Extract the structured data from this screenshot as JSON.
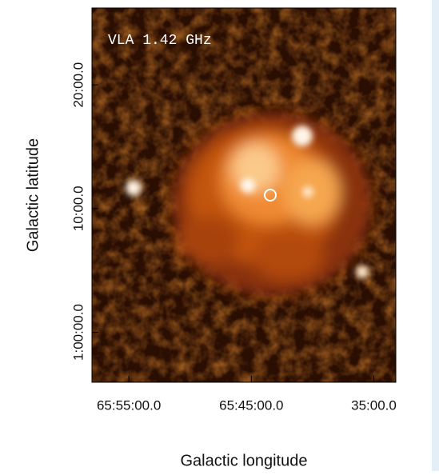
{
  "chart_data": {
    "type": "image",
    "annotation": "VLA 1.42 GHz",
    "xlabel": "Galactic longitude",
    "ylabel": "Galactic latitude",
    "xlim": [
      65.9669,
      65.5534
    ],
    "ylim": [
      0.9327,
      1.4369
    ],
    "xticks": [
      {
        "value": 65.9167,
        "label": "65:55:00.0"
      },
      {
        "value": 65.75,
        "label": "65:45:00.0"
      },
      {
        "value": 65.5833,
        "label": "35:00.0"
      }
    ],
    "yticks": [
      {
        "value": 1.0,
        "label": "1:00:00.0"
      },
      {
        "value": 1.1667,
        "label": "10:00.0"
      },
      {
        "value": 1.3333,
        "label": "20:00.0"
      }
    ]
  }
}
